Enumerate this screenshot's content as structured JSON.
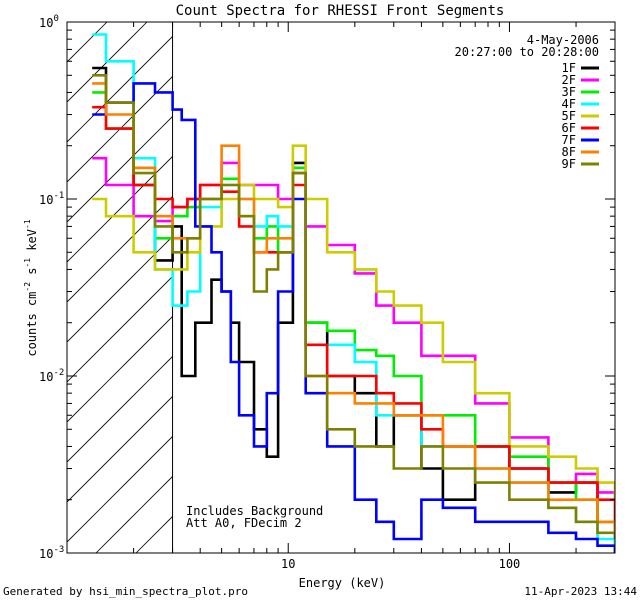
{
  "chart_data": {
    "type": "line",
    "title": "Count Spectra for RHESSI Front Segments",
    "xlabel": "Energy (keV)",
    "ylabel_parts": [
      "counts cm",
      "-2",
      " s",
      "-1",
      " keV",
      "-1"
    ],
    "x_scale": "log",
    "y_scale": "log",
    "xlim": [
      1.0,
      300
    ],
    "ylim": [
      0.001,
      1.0
    ],
    "x_major_ticks": [
      {
        "value": 10,
        "label": "10"
      },
      {
        "value": 100,
        "label": "100"
      }
    ],
    "y_major_ticks": [
      {
        "value": 1.0,
        "base": "10",
        "exp": "0"
      },
      {
        "value": 0.1,
        "base": "10",
        "exp": "-1"
      },
      {
        "value": 0.01,
        "base": "10",
        "exp": "-2"
      },
      {
        "value": 0.001,
        "base": "10",
        "exp": "-3"
      }
    ],
    "cutoff_energy_keV": 3.0,
    "date": "4-May-2006",
    "time_range": "20:27:00 to 20:28:00",
    "annotations": [
      "Includes Background",
      "Att A0, FDecim 2"
    ],
    "legend_position": "top-right",
    "series": [
      {
        "name": "1F",
        "color": "#000000",
        "x": [
          1.3,
          1.5,
          2.0,
          2.5,
          3.0,
          3.3,
          3.8,
          4.5,
          5.0,
          5.5,
          6.0,
          7.0,
          8.0,
          9.0,
          10.5,
          12.0,
          15.0,
          20.0,
          25.0,
          30.0,
          40.0,
          50.0,
          70.0,
          100.0,
          150.0,
          200.0,
          250.0,
          300.0
        ],
        "y": [
          0.55,
          0.35,
          0.12,
          0.045,
          0.07,
          0.01,
          0.02,
          0.035,
          0.03,
          0.02,
          0.012,
          0.005,
          0.0035,
          0.02,
          0.16,
          0.02,
          0.01,
          0.008,
          0.004,
          0.006,
          0.003,
          0.002,
          0.004,
          0.003,
          0.0022,
          0.0025,
          0.0015,
          0.001
        ]
      },
      {
        "name": "2F",
        "color": "#ff00ff",
        "x": [
          1.3,
          1.5,
          2.0,
          2.5,
          3.0,
          3.5,
          4.0,
          5.0,
          6.0,
          7.0,
          8.0,
          9.0,
          10.5,
          12.0,
          15.0,
          20.0,
          25.0,
          30.0,
          40.0,
          50.0,
          70.0,
          100.0,
          150.0,
          200.0,
          250.0,
          300.0
        ],
        "y": [
          0.17,
          0.12,
          0.08,
          0.075,
          0.09,
          0.1,
          0.12,
          0.16,
          0.12,
          0.12,
          0.12,
          0.1,
          0.14,
          0.07,
          0.055,
          0.038,
          0.025,
          0.02,
          0.013,
          0.013,
          0.007,
          0.0045,
          0.0025,
          0.0028,
          0.0022,
          0.002
        ]
      },
      {
        "name": "3F",
        "color": "#00ee00",
        "x": [
          1.3,
          1.5,
          2.0,
          2.5,
          3.0,
          3.5,
          4.0,
          5.0,
          6.0,
          7.0,
          8.0,
          9.0,
          10.5,
          12.0,
          15.0,
          20.0,
          25.0,
          30.0,
          40.0,
          50.0,
          70.0,
          100.0,
          150.0,
          200.0,
          250.0,
          300.0
        ],
        "y": [
          0.4,
          0.25,
          0.15,
          0.06,
          0.08,
          0.09,
          0.1,
          0.13,
          0.08,
          0.06,
          0.07,
          0.05,
          0.15,
          0.02,
          0.018,
          0.014,
          0.013,
          0.01,
          0.006,
          0.006,
          0.004,
          0.0035,
          0.0025,
          0.002,
          0.0015,
          0.001
        ]
      },
      {
        "name": "4F",
        "color": "#00ffff",
        "x": [
          1.3,
          1.5,
          2.0,
          2.5,
          3.0,
          3.5,
          4.0,
          5.0,
          6.0,
          7.0,
          8.0,
          9.0,
          10.5,
          12.0,
          15.0,
          20.0,
          25.0,
          30.0,
          40.0,
          50.0,
          70.0,
          100.0,
          150.0,
          200.0,
          250.0,
          300.0
        ],
        "y": [
          0.85,
          0.6,
          0.17,
          0.04,
          0.025,
          0.03,
          0.09,
          0.12,
          0.1,
          0.07,
          0.08,
          0.07,
          0.14,
          0.015,
          0.015,
          0.012,
          0.006,
          0.006,
          0.004,
          0.004,
          0.003,
          0.0025,
          0.0018,
          0.0015,
          0.0012,
          0.001
        ]
      },
      {
        "name": "5F",
        "color": "#cccc00",
        "x": [
          1.3,
          1.5,
          2.0,
          2.5,
          3.0,
          3.5,
          4.0,
          5.0,
          6.0,
          7.0,
          8.0,
          9.0,
          10.5,
          12.0,
          15.0,
          20.0,
          25.0,
          30.0,
          40.0,
          50.0,
          70.0,
          100.0,
          150.0,
          200.0,
          250.0,
          300.0
        ],
        "y": [
          0.1,
          0.08,
          0.05,
          0.04,
          0.04,
          0.05,
          0.07,
          0.1,
          0.12,
          0.1,
          0.1,
          0.09,
          0.2,
          0.1,
          0.05,
          0.04,
          0.03,
          0.025,
          0.02,
          0.012,
          0.008,
          0.004,
          0.0035,
          0.003,
          0.0025,
          0.002
        ]
      },
      {
        "name": "6F",
        "color": "#ff0000",
        "x": [
          1.3,
          1.5,
          2.0,
          2.5,
          3.0,
          3.5,
          4.0,
          5.0,
          6.0,
          7.0,
          8.0,
          9.0,
          10.5,
          12.0,
          15.0,
          20.0,
          25.0,
          30.0,
          40.0,
          50.0,
          70.0,
          100.0,
          150.0,
          200.0,
          250.0,
          300.0
        ],
        "y": [
          0.33,
          0.25,
          0.12,
          0.1,
          0.09,
          0.1,
          0.12,
          0.11,
          0.07,
          0.05,
          0.05,
          0.05,
          0.12,
          0.015,
          0.01,
          0.01,
          0.008,
          0.007,
          0.005,
          0.004,
          0.004,
          0.003,
          0.0025,
          0.0025,
          0.002,
          0.0015
        ]
      },
      {
        "name": "7F",
        "color": "#0000ff",
        "x": [
          1.3,
          1.5,
          2.0,
          2.5,
          3.0,
          3.3,
          3.8,
          4.5,
          5.0,
          5.5,
          6.0,
          7.0,
          8.0,
          9.0,
          10.5,
          12.0,
          15.0,
          20.0,
          25.0,
          30.0,
          40.0,
          50.0,
          70.0,
          100.0,
          150.0,
          200.0,
          250.0,
          300.0
        ],
        "y": [
          0.3,
          0.35,
          0.45,
          0.4,
          0.32,
          0.28,
          0.07,
          0.05,
          0.03,
          0.012,
          0.006,
          0.004,
          0.008,
          0.03,
          0.1,
          0.008,
          0.004,
          0.002,
          0.0015,
          0.0012,
          0.002,
          0.0018,
          0.0015,
          0.0015,
          0.0013,
          0.0012,
          0.0011,
          0.001
        ]
      },
      {
        "name": "8F",
        "color": "#ff8000",
        "x": [
          1.3,
          1.5,
          2.0,
          2.5,
          3.0,
          3.5,
          4.0,
          5.0,
          6.0,
          7.0,
          8.0,
          9.0,
          10.5,
          12.0,
          15.0,
          20.0,
          25.0,
          30.0,
          40.0,
          50.0,
          70.0,
          100.0,
          150.0,
          200.0,
          250.0,
          300.0
        ],
        "y": [
          0.45,
          0.3,
          0.15,
          0.08,
          0.06,
          0.06,
          0.1,
          0.2,
          0.1,
          0.05,
          0.06,
          0.06,
          0.14,
          0.01,
          0.008,
          0.007,
          0.007,
          0.006,
          0.006,
          0.004,
          0.003,
          0.0025,
          0.002,
          0.002,
          0.0015,
          0.0012
        ]
      },
      {
        "name": "9F",
        "color": "#808000",
        "x": [
          1.3,
          1.5,
          2.0,
          2.5,
          3.0,
          3.5,
          4.0,
          5.0,
          6.0,
          7.0,
          8.0,
          9.0,
          10.5,
          12.0,
          15.0,
          20.0,
          25.0,
          30.0,
          40.0,
          50.0,
          70.0,
          100.0,
          150.0,
          200.0,
          250.0,
          300.0
        ],
        "y": [
          0.5,
          0.35,
          0.14,
          0.07,
          0.05,
          0.06,
          0.1,
          0.12,
          0.08,
          0.03,
          0.04,
          0.05,
          0.14,
          0.01,
          0.005,
          0.004,
          0.004,
          0.003,
          0.004,
          0.003,
          0.0025,
          0.002,
          0.0018,
          0.0015,
          0.0013,
          0.0012
        ]
      }
    ]
  },
  "footer": {
    "generated_by": "Generated by hsi_min_spectra_plot.pro",
    "timestamp": "11-Apr-2023 13:44"
  }
}
